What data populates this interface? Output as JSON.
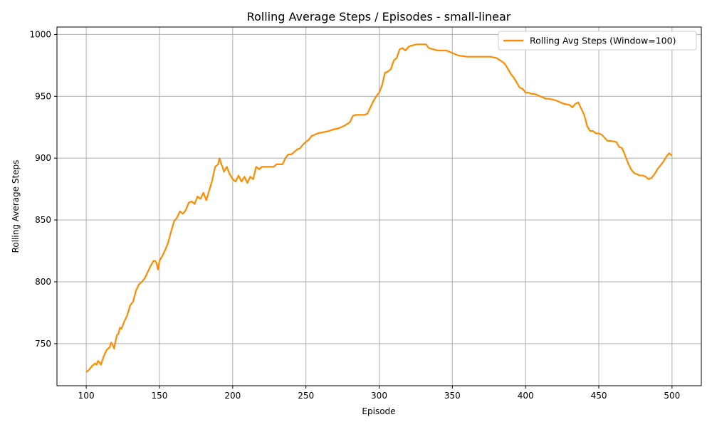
{
  "chart_data": {
    "type": "line",
    "title": "Rolling Average Steps / Episodes - small-linear",
    "xlabel": "Episode",
    "ylabel": "Rolling Average Steps",
    "xlim": [
      80,
      520
    ],
    "ylim": [
      716,
      1006
    ],
    "x_ticks": [
      100,
      150,
      200,
      250,
      300,
      350,
      400,
      450,
      500
    ],
    "y_ticks": [
      750,
      800,
      850,
      900,
      950,
      1000
    ],
    "grid": true,
    "legend_position": "top-right",
    "series": [
      {
        "name": "Rolling Avg Steps (Window=100)",
        "color": "#ff8c00",
        "x": [
          100,
          102,
          104,
          106,
          107,
          108,
          109,
          110,
          112,
          114,
          116,
          117,
          118,
          119,
          120,
          121,
          122,
          123,
          124,
          126,
          128,
          130,
          132,
          134,
          136,
          138,
          140,
          142,
          144,
          146,
          147,
          148,
          149,
          150,
          152,
          154,
          156,
          158,
          160,
          162,
          164,
          166,
          168,
          170,
          172,
          174,
          176,
          178,
          180,
          182,
          184,
          186,
          188,
          190,
          191,
          192,
          193,
          194,
          196,
          198,
          200,
          202,
          204,
          206,
          208,
          210,
          212,
          214,
          216,
          218,
          220,
          224,
          228,
          230,
          234,
          236,
          238,
          240,
          244,
          246,
          248,
          250,
          252,
          254,
          256,
          258,
          262,
          266,
          268,
          272,
          276,
          280,
          282,
          284,
          288,
          290,
          292,
          294,
          296,
          298,
          300,
          302,
          304,
          306,
          308,
          310,
          312,
          314,
          316,
          318,
          320,
          322,
          326,
          328,
          332,
          334,
          340,
          346,
          350,
          354,
          360,
          370,
          376,
          380,
          384,
          386,
          388,
          390,
          392,
          394,
          396,
          398,
          400,
          402,
          404,
          406,
          410,
          414,
          416,
          420,
          424,
          426,
          430,
          432,
          434,
          436,
          438,
          440,
          442,
          444,
          446,
          448,
          450,
          452,
          456,
          458,
          462,
          464,
          466,
          468,
          470,
          472,
          474,
          476,
          478,
          480,
          482,
          484,
          486,
          488,
          490,
          492,
          494,
          496,
          498,
          500
        ],
        "y": [
          727,
          729,
          732,
          734,
          733,
          736,
          735,
          733,
          740,
          745,
          747,
          751,
          749,
          746,
          752,
          757,
          758,
          763,
          762,
          768,
          773,
          781,
          784,
          793,
          798,
          800,
          803,
          808,
          813,
          817,
          817,
          815,
          810,
          817,
          821,
          826,
          832,
          841,
          849,
          852,
          857,
          855,
          858,
          864,
          865,
          863,
          869,
          867,
          872,
          866,
          874,
          882,
          893,
          895,
          900,
          896,
          893,
          889,
          893,
          887,
          883,
          881,
          886,
          881,
          885,
          880,
          885,
          883,
          893,
          891,
          893,
          893,
          893,
          895,
          895,
          900,
          903,
          903,
          907,
          908,
          911,
          913,
          915,
          918,
          919,
          920,
          921,
          922,
          923,
          924,
          926,
          929,
          934,
          935,
          935,
          935,
          936,
          941,
          946,
          950,
          953,
          959,
          969,
          970,
          972,
          979,
          981,
          988,
          989,
          987,
          990,
          991,
          992,
          992,
          992,
          989,
          987,
          987,
          985,
          983,
          982,
          982,
          982,
          981,
          978,
          976,
          972,
          968,
          965,
          961,
          957,
          956,
          953,
          953,
          952,
          952,
          950,
          948,
          948,
          947,
          945,
          944,
          943,
          941,
          944,
          945,
          940,
          935,
          926,
          922,
          922,
          920,
          920,
          919,
          914,
          914,
          913,
          909,
          908,
          902,
          896,
          891,
          888,
          887,
          886,
          886,
          885,
          883,
          884,
          887,
          891,
          894,
          897,
          901,
          904,
          902
        ]
      }
    ]
  }
}
